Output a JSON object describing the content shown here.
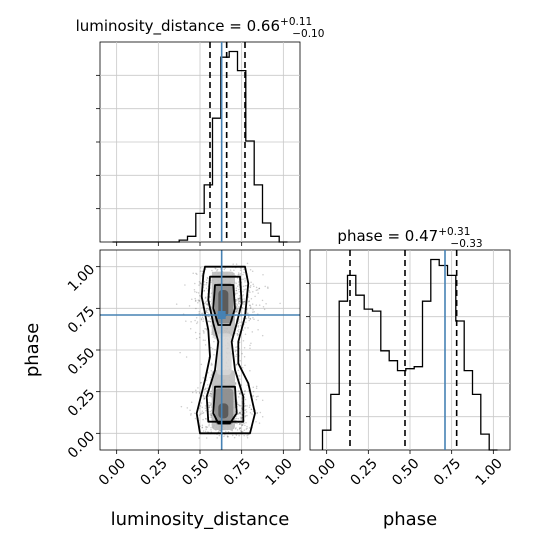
{
  "chart_data": [
    {
      "panel": "histogram-luminosity-distance",
      "type": "histogram",
      "title": "luminosity_distance = 0.66",
      "title_main": "luminosity_distance = 0.66",
      "title_sup": "+0.11",
      "title_sub": "−0.10",
      "xlim": [
        -0.1,
        1.1
      ],
      "grid": true,
      "bin_edges": [
        -0.025,
        0.025,
        0.075,
        0.125,
        0.175,
        0.225,
        0.275,
        0.325,
        0.375,
        0.425,
        0.475,
        0.525,
        0.575,
        0.625,
        0.675,
        0.725,
        0.775,
        0.825,
        0.875,
        0.925,
        0.975,
        1.025
      ],
      "counts": [
        0,
        0,
        0,
        0,
        0,
        0,
        0,
        0,
        0.01,
        0.03,
        0.15,
        0.3,
        0.65,
        0.97,
        1.0,
        0.9,
        0.53,
        0.3,
        0.1,
        0.03,
        0
      ],
      "quantile_lines": [
        0.56,
        0.66,
        0.77
      ],
      "truth": 0.63
    },
    {
      "panel": "scatter-contour",
      "type": "scatter",
      "xlabel": "luminosity_distance",
      "ylabel": "phase",
      "xlim": [
        -0.1,
        1.1
      ],
      "ylim": [
        -0.1,
        1.1
      ],
      "x_ticks": [
        "0.00",
        "0.25",
        "0.50",
        "0.75",
        "1.00"
      ],
      "y_ticks": [
        "0.00",
        "0.25",
        "0.50",
        "0.75",
        "1.00"
      ],
      "truth": {
        "x": 0.63,
        "y": 0.71
      },
      "grid": true
    },
    {
      "panel": "histogram-phase",
      "type": "histogram",
      "title": "phase = 0.47",
      "title_main": "phase = 0.47",
      "title_sup": "+0.31",
      "title_sub": "−0.33",
      "xlabel": "phase",
      "xlim": [
        -0.1,
        1.1
      ],
      "x_ticks": [
        "0.00",
        "0.25",
        "0.50",
        "0.75",
        "1.00"
      ],
      "grid": true,
      "bin_edges": [
        -0.025,
        0.025,
        0.075,
        0.125,
        0.175,
        0.225,
        0.275,
        0.325,
        0.375,
        0.425,
        0.475,
        0.525,
        0.575,
        0.625,
        0.675,
        0.725,
        0.775,
        0.825,
        0.875,
        0.925,
        0.975,
        1.025
      ],
      "counts": [
        0.1,
        0.28,
        0.75,
        0.88,
        0.78,
        0.71,
        0.7,
        0.5,
        0.45,
        0.4,
        0.41,
        0.42,
        0.75,
        0.96,
        0.93,
        0.88,
        0.65,
        0.4,
        0.28,
        0.08,
        0
      ],
      "quantile_lines": [
        0.14,
        0.47,
        0.78
      ],
      "truth": 0.71
    }
  ]
}
